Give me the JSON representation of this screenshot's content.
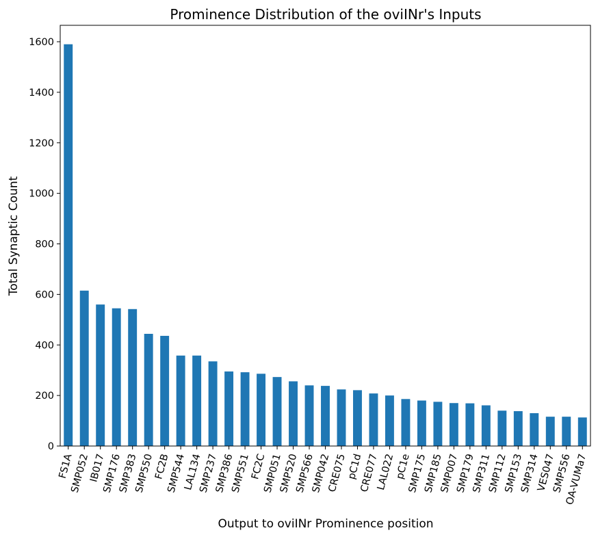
{
  "chart_data": {
    "type": "bar",
    "title": "Prominence Distribution of the oviINr's Inputs",
    "xlabel": "Output to oviINr Prominence position",
    "ylabel": "Total Synaptic Count",
    "ylim": [
      0,
      1665
    ],
    "yticks": [
      0,
      200,
      400,
      600,
      800,
      1000,
      1200,
      1400,
      1600
    ],
    "bar_color": "#1f77b4",
    "grid": false,
    "legend": "none",
    "categories": [
      "FS1A",
      "SMP052",
      "IB017",
      "SMP176",
      "SMP383",
      "SMP550",
      "FC2B",
      "SMP544",
      "LAL134",
      "SMP237",
      "SMP386",
      "SMP551",
      "FC2C",
      "SMP051",
      "SMP520",
      "SMP566",
      "SMP042",
      "CRE075",
      "pC1d",
      "CRE077",
      "LAL022",
      "pC1e",
      "SMP175",
      "SMP185",
      "SMP007",
      "SMP179",
      "SMP311",
      "SMP112",
      "SMP153",
      "SMP314",
      "VES047",
      "SMP556",
      "OA-VUMa7"
    ],
    "values": [
      1590,
      615,
      560,
      545,
      542,
      444,
      436,
      358,
      358,
      335,
      295,
      292,
      286,
      273,
      256,
      240,
      238,
      224,
      221,
      208,
      200,
      186,
      180,
      175,
      170,
      169,
      161,
      140,
      138,
      130,
      116,
      116,
      113
    ]
  }
}
